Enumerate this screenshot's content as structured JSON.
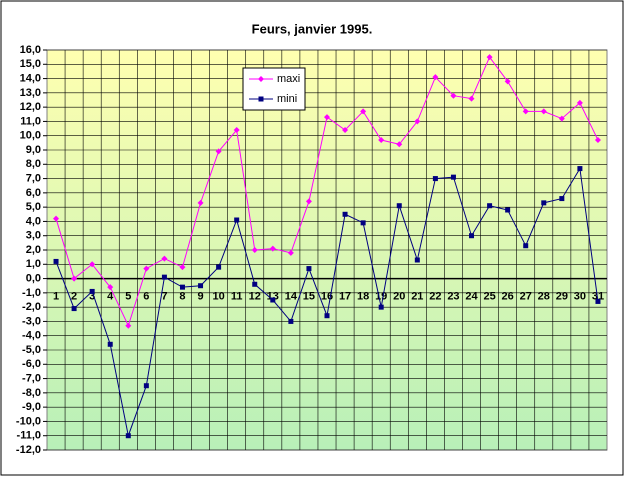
{
  "chart_data": {
    "type": "line",
    "title": "Feurs, janvier 1995.",
    "categories": [
      "1",
      "2",
      "3",
      "4",
      "5",
      "6",
      "7",
      "8",
      "9",
      "10",
      "11",
      "12",
      "13",
      "14",
      "15",
      "16",
      "17",
      "18",
      "19",
      "20",
      "21",
      "22",
      "23",
      "24",
      "25",
      "26",
      "27",
      "28",
      "29",
      "30",
      "31"
    ],
    "series": [
      {
        "name": "maxi",
        "color": "#ff00ff",
        "marker": "diamond",
        "values": [
          4.2,
          0.0,
          1.0,
          -0.6,
          -3.3,
          0.7,
          1.4,
          0.8,
          5.3,
          8.9,
          10.4,
          2.0,
          2.1,
          1.8,
          5.4,
          11.3,
          10.4,
          11.7,
          9.7,
          9.4,
          11.0,
          14.1,
          12.8,
          12.6,
          15.5,
          13.8,
          11.7,
          11.7,
          11.2,
          12.3,
          9.7
        ]
      },
      {
        "name": "mini",
        "color": "#000080",
        "marker": "square",
        "values": [
          1.2,
          -2.1,
          -0.9,
          -4.6,
          -11.0,
          -7.5,
          0.1,
          -0.6,
          -0.5,
          0.8,
          4.1,
          -0.4,
          -1.5,
          -3.0,
          0.7,
          -2.6,
          4.5,
          3.9,
          -2.0,
          5.1,
          1.3,
          7.0,
          7.1,
          3.0,
          5.1,
          4.8,
          2.3,
          5.3,
          5.6,
          7.7,
          -1.6
        ]
      }
    ],
    "ylim": [
      -12,
      16
    ],
    "yticks": [
      {
        "value": 16,
        "label": "16,0"
      },
      {
        "value": 15,
        "label": "15,0"
      },
      {
        "value": 14,
        "label": "14,0"
      },
      {
        "value": 13,
        "label": "13,0"
      },
      {
        "value": 12,
        "label": "12,0"
      },
      {
        "value": 11,
        "label": "11,0"
      },
      {
        "value": 10,
        "label": "10,0"
      },
      {
        "value": 9,
        "label": "9,0"
      },
      {
        "value": 8,
        "label": "8,0"
      },
      {
        "value": 7,
        "label": "7,0"
      },
      {
        "value": 6,
        "label": "6,0"
      },
      {
        "value": 5,
        "label": "5,0"
      },
      {
        "value": 4,
        "label": "4,0"
      },
      {
        "value": 3,
        "label": "3,0"
      },
      {
        "value": 2,
        "label": "2,0"
      },
      {
        "value": 1,
        "label": "1,0"
      },
      {
        "value": 0,
        "label": "0,0"
      },
      {
        "value": -1,
        "label": "-1,0"
      },
      {
        "value": -2,
        "label": "-2,0"
      },
      {
        "value": -3,
        "label": "-3,0"
      },
      {
        "value": -4,
        "label": "-4,0"
      },
      {
        "value": -5,
        "label": "-5,0"
      },
      {
        "value": -6,
        "label": "-6,0"
      },
      {
        "value": -7,
        "label": "-7,0"
      },
      {
        "value": -8,
        "label": "-8,0"
      },
      {
        "value": -9,
        "label": "-9,0"
      },
      {
        "value": -10,
        "label": "-10,0"
      },
      {
        "value": -11,
        "label": "-11,0"
      },
      {
        "value": -12,
        "label": "-12,0"
      }
    ],
    "grid": true,
    "legend": "top-left"
  }
}
